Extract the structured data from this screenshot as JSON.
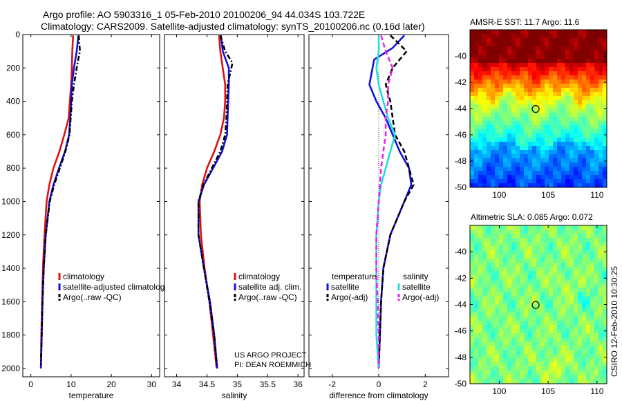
{
  "header": {
    "title_line1": "Argo profile: AO 5903316_1 05-Feb-2010 20100206_94 44.034S 103.722E",
    "title_line2": "Climatology: CARS2009. Satellite-adjusted climatology: synTS_20100206.nc (0.16d later)"
  },
  "credits": {
    "project": "US ARGO PROJECT",
    "pi": "PI: DEAN ROEMMICH",
    "csiro_stamp": "CSIRO 12-Feb-2010 10:30:25"
  },
  "colors": {
    "climatology": "#dd1111",
    "satellite": "#1111dd",
    "argo": "#000000",
    "sal_satellite": "#22dddd",
    "sal_argo": "#ee22ee"
  },
  "chart_data": [
    {
      "type": "line",
      "xlabel": "temperature",
      "ylabel": "",
      "xlim": [
        -2,
        32
      ],
      "ylim": [
        2050,
        0
      ],
      "xticks": [
        0,
        10,
        20,
        30
      ],
      "yticks": [
        0,
        200,
        400,
        600,
        800,
        1000,
        1200,
        1400,
        1600,
        1800,
        2000
      ],
      "legend": [
        "climatology",
        "satellite-adjusted climatolog",
        "Argo(..raw -QC)"
      ],
      "series": [
        {
          "name": "climatology",
          "color": "#dd1111",
          "style": "solid",
          "x": [
            10.5,
            10.3,
            10.2,
            10.0,
            9.7,
            9.4,
            8.3,
            7.1,
            5.6,
            4.6,
            3.9,
            3.4,
            3.0,
            2.8,
            2.6,
            2.5
          ],
          "y": [
            5,
            100,
            200,
            300,
            400,
            500,
            600,
            700,
            800,
            900,
            1000,
            1200,
            1400,
            1600,
            1800,
            2000
          ]
        },
        {
          "name": "satellite-adjusted climatolog",
          "color": "#1111dd",
          "style": "solid",
          "x": [
            11.8,
            11.4,
            10.7,
            10.2,
            10.0,
            9.8,
            9.5,
            8.5,
            7.0,
            5.6,
            4.6,
            3.7,
            3.2,
            2.9,
            2.7,
            2.5
          ],
          "y": [
            5,
            100,
            200,
            300,
            400,
            500,
            600,
            700,
            800,
            900,
            1000,
            1200,
            1400,
            1600,
            1800,
            2000
          ]
        },
        {
          "name": "Argo(..raw -QC)",
          "color": "#000000",
          "style": "dashdot",
          "x": [
            11.9,
            12.2,
            11.6,
            10.7,
            10.2,
            9.9,
            9.6,
            8.6,
            7.2,
            5.8,
            4.7,
            3.7,
            3.2,
            2.9,
            2.7,
            2.5
          ],
          "y": [
            5,
            100,
            170,
            300,
            400,
            500,
            600,
            700,
            800,
            900,
            1000,
            1200,
            1400,
            1600,
            1800,
            1980
          ]
        }
      ]
    },
    {
      "type": "line",
      "xlabel": "salinity",
      "ylabel": "",
      "xlim": [
        33.8,
        36.1
      ],
      "ylim": [
        2050,
        0
      ],
      "xticks": [
        34,
        34.5,
        35,
        35.5,
        36
      ],
      "xticklabels": [
        "34",
        "34.5",
        "35",
        "35.5",
        "36"
      ],
      "legend": [
        "climatology",
        "satellite adj. clim.",
        "Argo(..raw -QC)"
      ],
      "series": [
        {
          "name": "climatology",
          "color": "#dd1111",
          "style": "solid",
          "x": [
            34.7,
            34.72,
            34.76,
            34.8,
            34.8,
            34.78,
            34.72,
            34.62,
            34.5,
            34.42,
            34.38,
            34.4,
            34.46,
            34.54,
            34.6,
            34.66
          ],
          "y": [
            5,
            100,
            200,
            300,
            400,
            500,
            600,
            700,
            800,
            900,
            1000,
            1200,
            1400,
            1600,
            1800,
            2000
          ]
        },
        {
          "name": "satellite adj. clim.",
          "color": "#1111dd",
          "style": "solid",
          "x": [
            34.73,
            34.76,
            34.86,
            34.86,
            34.85,
            34.84,
            34.83,
            34.75,
            34.6,
            34.45,
            34.36,
            34.36,
            34.45,
            34.55,
            34.62,
            34.67
          ],
          "y": [
            5,
            100,
            200,
            300,
            400,
            500,
            600,
            700,
            800,
            900,
            1000,
            1200,
            1400,
            1600,
            1800,
            2000
          ]
        },
        {
          "name": "Argo(..raw -QC)",
          "color": "#000000",
          "style": "dashdot",
          "x": [
            34.72,
            34.8,
            34.92,
            34.84,
            34.83,
            34.82,
            34.8,
            34.72,
            34.58,
            34.44,
            34.36,
            34.36,
            34.45,
            34.54,
            34.62,
            34.66
          ],
          "y": [
            5,
            100,
            170,
            300,
            400,
            500,
            600,
            700,
            800,
            900,
            1000,
            1200,
            1400,
            1600,
            1800,
            1980
          ]
        }
      ]
    },
    {
      "type": "line",
      "xlabel": "difference from climatology",
      "ylabel": "",
      "xlim": [
        -3,
        3
      ],
      "ylim": [
        2050,
        0
      ],
      "xticks": [
        -2,
        0,
        2
      ],
      "legend_temperature_title": "temperature",
      "legend_salinity_title": "salinity",
      "legend_temperature": [
        "satellite",
        "Argo(-adj)"
      ],
      "legend_salinity": [
        "satellite",
        "Argo(-adj)"
      ],
      "series": [
        {
          "name": "satellite",
          "group": "temperature",
          "color": "#1111dd",
          "style": "solid",
          "x": [
            1.1,
            0.6,
            -0.2,
            -0.4,
            -0.1,
            0.3,
            0.6,
            0.9,
            1.3,
            1.4,
            1.1,
            0.5,
            0.2,
            0.1,
            0.05,
            0.0
          ],
          "y": [
            5,
            80,
            150,
            300,
            400,
            500,
            600,
            700,
            800,
            900,
            1000,
            1200,
            1400,
            1600,
            1800,
            2000
          ]
        },
        {
          "name": "Argo(-adj)",
          "group": "temperature",
          "color": "#000000",
          "style": "dashed",
          "x": [
            0.5,
            1.2,
            0.6,
            0.3,
            0.5,
            0.6,
            0.7,
            1.1,
            1.3,
            1.5,
            1.1,
            0.5,
            0.2,
            0.1,
            0.05,
            0.0
          ],
          "y": [
            5,
            100,
            200,
            300,
            400,
            500,
            600,
            700,
            800,
            900,
            1000,
            1200,
            1400,
            1600,
            1800,
            2000
          ]
        },
        {
          "name": "satellite",
          "group": "salinity",
          "color": "#22dddd",
          "style": "solid",
          "x": [
            0.0,
            0.0,
            -0.1,
            0.0,
            0.2,
            0.4,
            0.7,
            0.5,
            0.3,
            0.1,
            0.0,
            -0.1,
            -0.1,
            -0.1,
            -0.1,
            0.0
          ],
          "y": [
            5,
            100,
            200,
            300,
            400,
            500,
            600,
            700,
            800,
            900,
            1000,
            1200,
            1400,
            1600,
            1800,
            2000
          ]
        },
        {
          "name": "Argo(-adj)",
          "group": "salinity",
          "color": "#ee22ee",
          "style": "dashed",
          "x": [
            0.1,
            0.3,
            0.6,
            0.4,
            0.4,
            0.3,
            0.3,
            0.2,
            0.1,
            0.05,
            0.0,
            -0.1,
            -0.1,
            -0.05,
            0.0,
            0.0
          ],
          "y": [
            5,
            100,
            200,
            300,
            400,
            500,
            600,
            700,
            800,
            900,
            1000,
            1200,
            1400,
            1600,
            1800,
            2000
          ]
        }
      ]
    },
    {
      "type": "heatmap",
      "title": "AMSR-E SST: 11.7 Argo: 11.6",
      "xlim": [
        97,
        111
      ],
      "ylim": [
        -50,
        -38
      ],
      "xticks": [
        100,
        105,
        110
      ],
      "yticks": [
        -40,
        -42,
        -44,
        -46,
        -48,
        -50
      ],
      "marker": {
        "lon": 103.722,
        "lat": -44.034
      },
      "colorscale": "jet"
    },
    {
      "type": "heatmap",
      "title": "Altimetric SLA: 0.085 Argo: 0.072",
      "xlim": [
        97,
        111
      ],
      "ylim": [
        -50,
        -38
      ],
      "xticks": [
        100,
        105,
        110
      ],
      "yticks": [
        -40,
        -42,
        -44,
        -46,
        -48,
        -50
      ],
      "marker": {
        "lon": 103.722,
        "lat": -44.034
      },
      "colorscale": "jet"
    }
  ]
}
